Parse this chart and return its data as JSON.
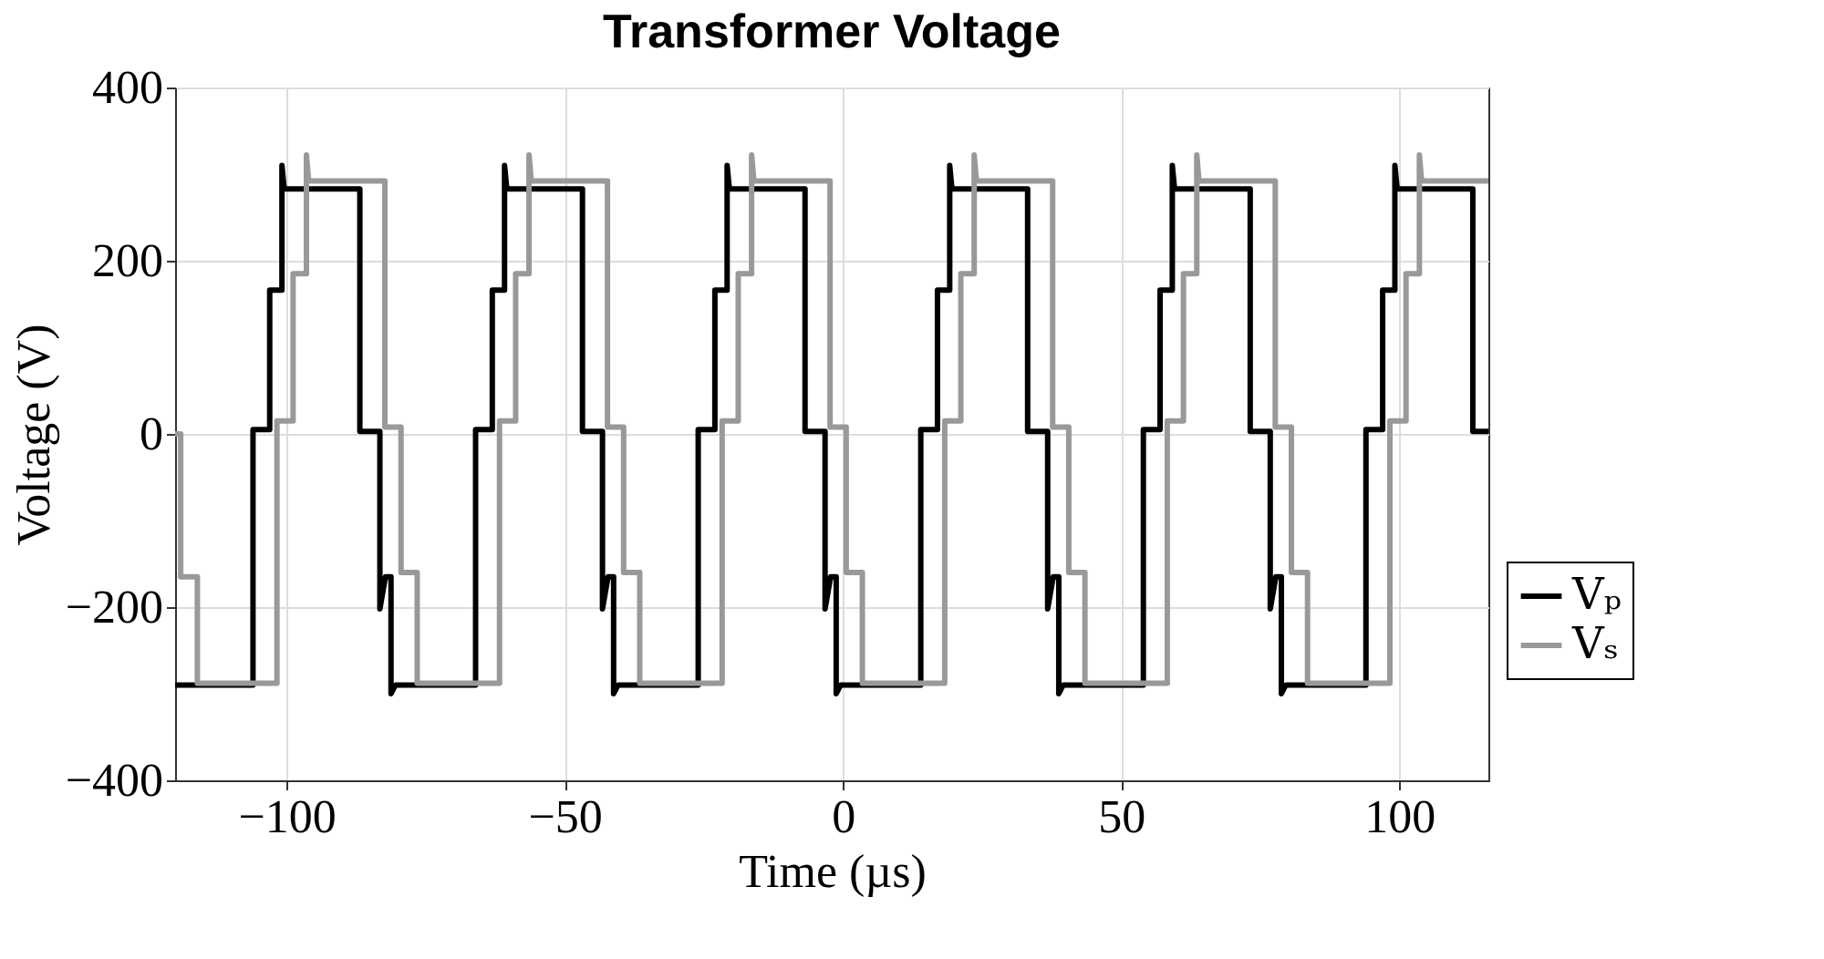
{
  "chart_data": {
    "type": "line",
    "title": "Transformer Voltage",
    "xlabel": "Time (µs)",
    "ylabel": "Voltage (V)",
    "xlim": [
      -120,
      116
    ],
    "xticks": [
      -100,
      -50,
      0,
      50,
      100
    ],
    "ylim": [
      -400,
      400
    ],
    "yticks": [
      -400,
      -200,
      0,
      200,
      400
    ],
    "grid": true,
    "legend": "bottom right",
    "line_style": "solid",
    "marker": "none",
    "series": [
      {
        "name": "Vₚ",
        "color": "#000000",
        "x": [
          -120,
          -106,
          -106,
          -103,
          -103,
          -100.8,
          -100.8,
          -100.4,
          -86.8,
          -86.8,
          -83.2,
          -83.2,
          -82.2,
          -81.2,
          -81.2,
          -80.4,
          -66,
          -66,
          -63,
          -63,
          -60.8,
          -60.8,
          -60.4,
          -46.8,
          -46.8,
          -43.2,
          -43.2,
          -42.2,
          -41.2,
          -41.2,
          -40.4,
          -26,
          -26,
          -23,
          -23,
          -20.8,
          -20.8,
          -20.4,
          -6.8,
          -6.8,
          -3.2,
          -3.2,
          -2.2,
          -1.2,
          -1.2,
          -0.4,
          14,
          14,
          17,
          17,
          19.2,
          19.2,
          19.6,
          33.2,
          33.2,
          36.8,
          36.8,
          37.8,
          38.8,
          38.8,
          39.6,
          54,
          54,
          57,
          57,
          59.2,
          59.2,
          59.6,
          73.2,
          73.2,
          76.8,
          76.8,
          77.8,
          78.8,
          78.8,
          79.6,
          94,
          94,
          97,
          97,
          99.2,
          99.2,
          99.6,
          113.2,
          113.2,
          116
        ],
        "values": [
          -290,
          -290,
          5,
          5,
          166,
          166,
          310,
          283,
          283,
          3,
          3,
          -202,
          -165,
          -165,
          -300,
          -290,
          -290,
          5,
          5,
          166,
          166,
          310,
          283,
          283,
          3,
          3,
          -202,
          -165,
          -165,
          -300,
          -290,
          -290,
          5,
          5,
          166,
          166,
          310,
          283,
          283,
          3,
          3,
          -202,
          -165,
          -165,
          -300,
          -290,
          -290,
          5,
          5,
          166,
          166,
          310,
          283,
          283,
          3,
          3,
          -202,
          -165,
          -165,
          -300,
          -290,
          -290,
          5,
          5,
          166,
          166,
          310,
          283,
          283,
          3,
          3,
          -202,
          -165,
          -165,
          -300,
          -290,
          -290,
          5,
          5,
          166,
          166,
          310,
          283,
          283,
          3,
          3
        ]
      },
      {
        "name": "Vₛ",
        "color": "#999999",
        "x": [
          -120,
          -119,
          -119,
          -116,
          -116,
          -101.7,
          -101.7,
          -98.8,
          -98.8,
          -96.4,
          -96.4,
          -96,
          -82.3,
          -82.3,
          -79.4,
          -79.4,
          -76.5,
          -76.5,
          -61.7,
          -61.7,
          -58.8,
          -58.8,
          -56.4,
          -56.4,
          -56,
          -42.3,
          -42.3,
          -39.4,
          -39.4,
          -36.5,
          -36.5,
          -21.7,
          -21.7,
          -18.8,
          -18.8,
          -16.4,
          -16.4,
          -16,
          -2.3,
          -2.3,
          0.6,
          0.6,
          3.5,
          3.5,
          18.3,
          18.3,
          21.2,
          21.2,
          23.6,
          23.6,
          24,
          37.7,
          37.7,
          40.6,
          40.6,
          43.5,
          43.5,
          58.3,
          58.3,
          61.2,
          61.2,
          63.6,
          63.6,
          64,
          77.7,
          77.7,
          80.6,
          80.6,
          83.5,
          83.5,
          98.3,
          98.3,
          101.2,
          101.2,
          103.6,
          103.6,
          104,
          116
        ],
        "values": [
          0,
          0,
          -165,
          -165,
          -288,
          -288,
          15,
          15,
          185,
          185,
          322,
          292,
          292,
          8,
          8,
          -160,
          -160,
          -288,
          -288,
          15,
          15,
          185,
          185,
          322,
          292,
          292,
          8,
          8,
          -160,
          -160,
          -288,
          -288,
          15,
          15,
          185,
          185,
          322,
          292,
          292,
          8,
          8,
          -160,
          -160,
          -288,
          -288,
          15,
          15,
          185,
          185,
          322,
          292,
          292,
          8,
          8,
          -160,
          -160,
          -288,
          -288,
          15,
          15,
          185,
          185,
          322,
          292,
          292,
          8,
          8,
          -160,
          -160,
          -288,
          -288,
          15,
          15,
          185,
          185,
          322,
          292,
          292
        ]
      }
    ]
  }
}
